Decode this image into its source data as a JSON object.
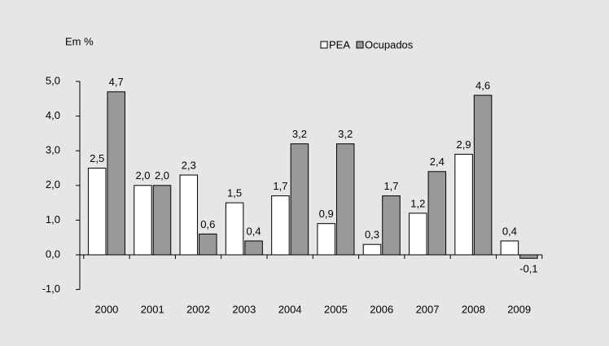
{
  "chart_data": {
    "type": "bar",
    "y_label": "Em %",
    "categories": [
      "2000",
      "2001",
      "2002",
      "2003",
      "2004",
      "2005",
      "2006",
      "2007",
      "2008",
      "2009"
    ],
    "series": [
      {
        "name": "PEA",
        "color": "#ffffff",
        "values": [
          2.5,
          2.0,
          2.3,
          1.5,
          1.7,
          0.9,
          0.3,
          1.2,
          2.9,
          0.4
        ],
        "value_labels": [
          "2,5",
          "2,0",
          "2,3",
          "1,5",
          "1,7",
          "0,9",
          "0,3",
          "1,2",
          "2,9",
          "0,4"
        ]
      },
      {
        "name": "Ocupados",
        "color": "#999999",
        "values": [
          4.7,
          2.0,
          0.6,
          0.4,
          3.2,
          3.2,
          1.7,
          2.4,
          4.6,
          -0.1
        ],
        "value_labels": [
          "4,7",
          "2,0",
          "0,6",
          "0,4",
          "3,2",
          "3,2",
          "1,7",
          "2,4",
          "4,6",
          "-0,1"
        ]
      }
    ],
    "ylim": [
      -1,
      5
    ],
    "yticks": [
      {
        "value": -1,
        "label": "-1,0"
      },
      {
        "value": 0,
        "label": "0,0"
      },
      {
        "value": 1,
        "label": "1,0"
      },
      {
        "value": 2,
        "label": "2,0"
      },
      {
        "value": 3,
        "label": "3,0"
      },
      {
        "value": 4,
        "label": "4,0"
      },
      {
        "value": 5,
        "label": "5,0"
      }
    ],
    "legend": "top"
  }
}
